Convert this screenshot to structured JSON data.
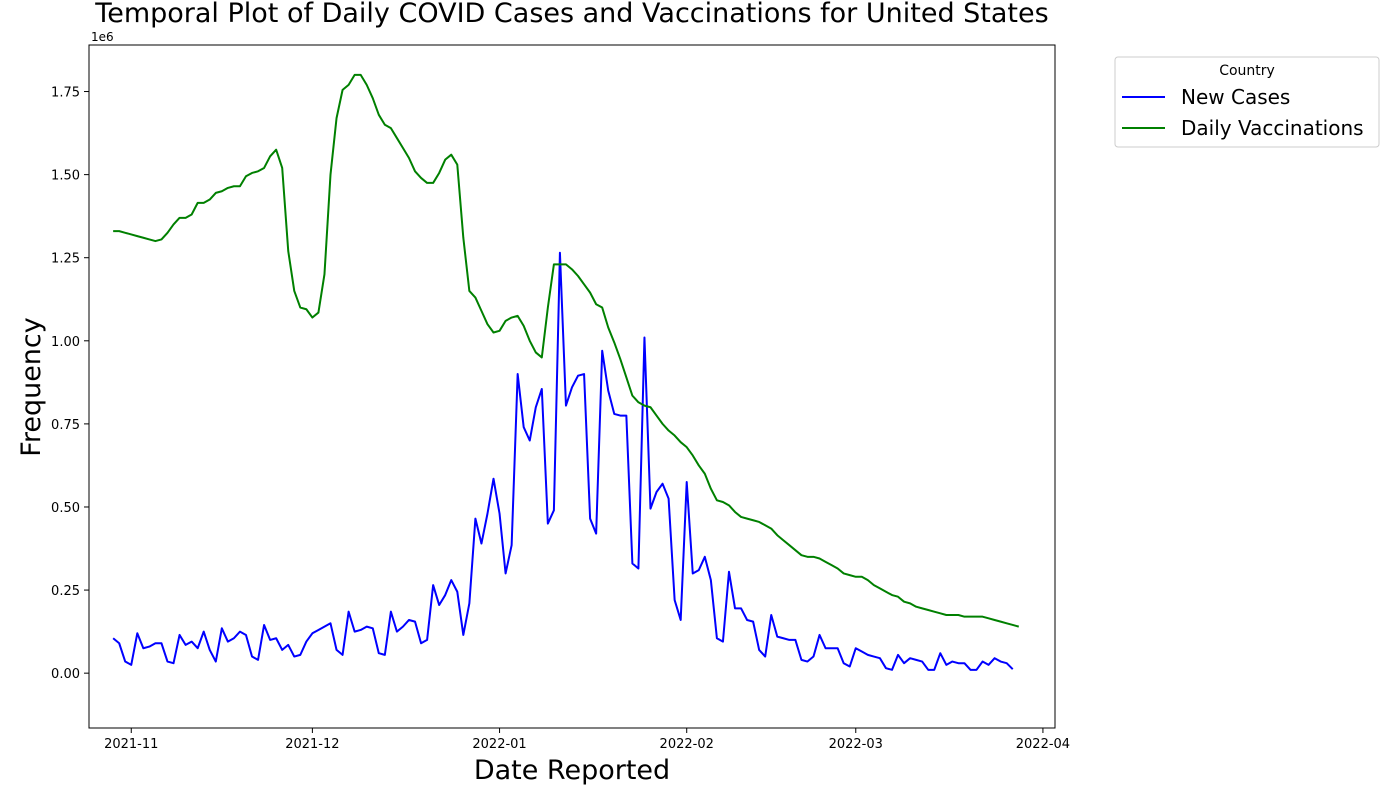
{
  "chart_data": {
    "type": "line",
    "title": "Temporal Plot of Daily COVID Cases and Vaccinations for United States",
    "xlabel": "Date Reported",
    "ylabel": "Frequency",
    "y_offset_label": "1e6",
    "y_unit_multiplier": 1000000,
    "ylim": [
      -0.165,
      1.89
    ],
    "xlim": [
      "2021-10-25",
      "2022-04-03"
    ],
    "y_ticks": [
      0.0,
      0.25,
      0.5,
      0.75,
      1.0,
      1.25,
      1.5,
      1.75
    ],
    "y_tick_labels": [
      "0.00",
      "0.25",
      "0.50",
      "0.75",
      "1.00",
      "1.25",
      "1.50",
      "1.75"
    ],
    "x_ticks": [
      "2021-11-01",
      "2021-12-01",
      "2022-01-01",
      "2022-02-01",
      "2022-03-01",
      "2022-04-01"
    ],
    "x_tick_labels": [
      "2021-11",
      "2021-12",
      "2022-01",
      "2022-02",
      "2022-03",
      "2022-04"
    ],
    "grid": false,
    "legend": {
      "title": "Country",
      "placement": "outside-top-right"
    },
    "start_date": "2021-10-29",
    "series": [
      {
        "name": "New Cases",
        "color": "#0000ff",
        "values": [
          0.105,
          0.09,
          0.035,
          0.025,
          0.12,
          0.075,
          0.08,
          0.09,
          0.09,
          0.035,
          0.03,
          0.115,
          0.085,
          0.095,
          0.075,
          0.125,
          0.07,
          0.035,
          0.135,
          0.095,
          0.105,
          0.125,
          0.115,
          0.05,
          0.04,
          0.145,
          0.1,
          0.105,
          0.07,
          0.085,
          0.05,
          0.055,
          0.095,
          0.12,
          0.13,
          0.14,
          0.15,
          0.07,
          0.055,
          0.185,
          0.125,
          0.13,
          0.14,
          0.135,
          0.06,
          0.055,
          0.185,
          0.125,
          0.14,
          0.16,
          0.155,
          0.09,
          0.1,
          0.265,
          0.205,
          0.235,
          0.28,
          0.245,
          0.115,
          0.21,
          0.465,
          0.39,
          0.48,
          0.585,
          0.48,
          0.3,
          0.385,
          0.9,
          0.74,
          0.7,
          0.8,
          0.855,
          0.45,
          0.49,
          1.265,
          0.805,
          0.86,
          0.895,
          0.9,
          0.465,
          0.42,
          0.97,
          0.85,
          0.78,
          0.775,
          0.775,
          0.33,
          0.315,
          1.01,
          0.495,
          0.545,
          0.57,
          0.525,
          0.22,
          0.16,
          0.575,
          0.3,
          0.31,
          0.35,
          0.28,
          0.105,
          0.095,
          0.305,
          0.195,
          0.195,
          0.16,
          0.155,
          0.07,
          0.05,
          0.175,
          0.11,
          0.105,
          0.1,
          0.1,
          0.04,
          0.035,
          0.05,
          0.115,
          0.075,
          0.075,
          0.075,
          0.03,
          0.02,
          0.075,
          0.065,
          0.055,
          0.05,
          0.045,
          0.015,
          0.01,
          0.055,
          0.03,
          0.045,
          0.04,
          0.035,
          0.01,
          0.01,
          0.06,
          0.025,
          0.035,
          0.03,
          0.03,
          0.01,
          0.01,
          0.035,
          0.025,
          0.045,
          0.035,
          0.03,
          0.012
        ]
      },
      {
        "name": "Daily Vaccinations",
        "color": "#008000",
        "values": [
          1.33,
          1.33,
          1.325,
          1.32,
          1.315,
          1.31,
          1.305,
          1.3,
          1.305,
          1.325,
          1.35,
          1.37,
          1.37,
          1.38,
          1.415,
          1.415,
          1.425,
          1.445,
          1.45,
          1.46,
          1.465,
          1.465,
          1.495,
          1.505,
          1.51,
          1.52,
          1.555,
          1.575,
          1.52,
          1.27,
          1.15,
          1.1,
          1.095,
          1.07,
          1.085,
          1.2,
          1.5,
          1.67,
          1.755,
          1.77,
          1.8,
          1.8,
          1.77,
          1.73,
          1.68,
          1.65,
          1.64,
          1.61,
          1.58,
          1.55,
          1.51,
          1.49,
          1.475,
          1.475,
          1.505,
          1.545,
          1.56,
          1.53,
          1.31,
          1.15,
          1.13,
          1.09,
          1.05,
          1.025,
          1.03,
          1.06,
          1.07,
          1.075,
          1.045,
          1.0,
          0.965,
          0.95,
          1.1,
          1.23,
          1.23,
          1.23,
          1.215,
          1.195,
          1.17,
          1.145,
          1.11,
          1.1,
          1.04,
          0.995,
          0.945,
          0.89,
          0.835,
          0.815,
          0.805,
          0.8,
          0.775,
          0.75,
          0.73,
          0.715,
          0.695,
          0.68,
          0.655,
          0.625,
          0.6,
          0.555,
          0.52,
          0.515,
          0.505,
          0.485,
          0.47,
          0.465,
          0.46,
          0.455,
          0.445,
          0.435,
          0.415,
          0.4,
          0.385,
          0.37,
          0.355,
          0.35,
          0.35,
          0.345,
          0.335,
          0.325,
          0.315,
          0.3,
          0.295,
          0.29,
          0.29,
          0.28,
          0.265,
          0.255,
          0.245,
          0.235,
          0.23,
          0.215,
          0.21,
          0.2,
          0.195,
          0.19,
          0.185,
          0.18,
          0.175,
          0.175,
          0.175,
          0.17,
          0.17,
          0.17,
          0.17,
          0.165,
          0.16,
          0.155,
          0.15,
          0.145,
          0.14
        ]
      }
    ]
  }
}
